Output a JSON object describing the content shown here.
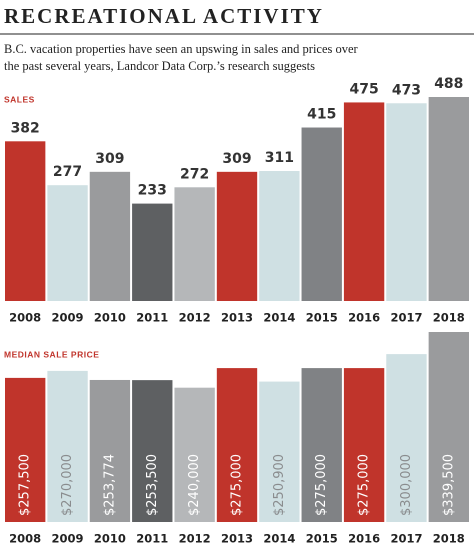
{
  "header": {
    "title": "RECREATIONAL ACTIVITY",
    "subtitle": [
      "B.C. vacation properties have seen an upswing in sales and prices over",
      "the past several years, Landcor Data Corp.’s research suggests"
    ]
  },
  "chart_data": [
    {
      "type": "bar",
      "title": "SALES",
      "categories": [
        "2008",
        "2009",
        "2010",
        "2011",
        "2012",
        "2013",
        "2014",
        "2015",
        "2016",
        "2017",
        "2018"
      ],
      "values": [
        382,
        277,
        309,
        233,
        272,
        309,
        311,
        415,
        475,
        473,
        488
      ],
      "colors": [
        "#c0342b",
        "#cfe0e3",
        "#9a9b9d",
        "#5e6062",
        "#b5b7b9",
        "#c0342b",
        "#cfe0e3",
        "#808285",
        "#c0342b",
        "#cfe0e3",
        "#9a9b9d"
      ]
    },
    {
      "type": "bar",
      "title": "MEDIAN SALE PRICE",
      "categories": [
        "2008",
        "2009",
        "2010",
        "2011",
        "2012",
        "2013",
        "2014",
        "2015",
        "2016",
        "2017",
        "2018"
      ],
      "values": [
        257500,
        270000,
        253774,
        253500,
        240000,
        275000,
        250900,
        275000,
        275000,
        300000,
        339500
      ],
      "value_labels": [
        "$257,500",
        "$270,000",
        "$253,774",
        "$253,500",
        "$240,000",
        "$275,000",
        "$250,900",
        "$275,000",
        "$275,000",
        "$300,000",
        "$339,500"
      ],
      "colors": [
        "#c0342b",
        "#cfe0e3",
        "#9a9b9d",
        "#5e6062",
        "#b5b7b9",
        "#c0342b",
        "#cfe0e3",
        "#808285",
        "#c0342b",
        "#cfe0e3",
        "#9a9b9d"
      ]
    }
  ]
}
